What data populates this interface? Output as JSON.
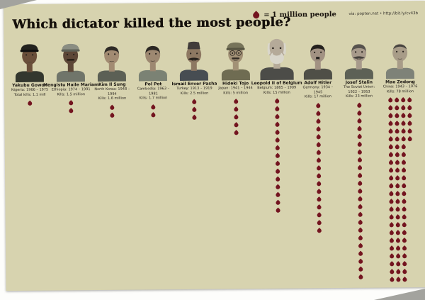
{
  "page": {
    "title": "Which dictator killed the most people?",
    "legend_label": "= 1 million people",
    "credit": "via: popten.net • http://bit.ly/cv43b",
    "colors": {
      "background": "#d7d3af",
      "drop": "#73141f",
      "title": "#15100b"
    }
  },
  "chart_data": {
    "type": "pictograph",
    "title": "Which dictator killed the most people?",
    "unit_label": "= 1 million people",
    "unit": "1 drop = 1 million people",
    "dictators": [
      {
        "name": "Yakubu Gowon",
        "country_years": "Nigeria: 1966 – 1975",
        "kills_label": "Total kills: 1.1 mill",
        "kills_millions": 1.1,
        "drops": 1,
        "portrait": {
          "skin": "#6a4f3a",
          "shirt": "#33372e",
          "hat": "peaked",
          "hat_color": "#23231f",
          "hat_band": "#111110",
          "facial": "none"
        }
      },
      {
        "name": "Mengistu Haile Mariam",
        "country_years": "Ethiopia: 1974 – 1991",
        "kills_label": "Kills: 1.5 million",
        "kills_millions": 1.5,
        "drops": 2,
        "portrait": {
          "skin": "#5d4737",
          "shirt": "#70756a",
          "hat": "peaked",
          "hat_color": "#8a8d82",
          "hat_band": "#5f6258",
          "facial": "mustache",
          "facial_color": "#241c14"
        }
      },
      {
        "name": "Kim Il Sung",
        "country_years": "North Korea: 1948 – 1994",
        "kills_label": "Kills: 1.6 million",
        "kills_millions": 1.6,
        "drops": 2,
        "portrait": {
          "skin": "#a28b72",
          "shirt": "#5c6055",
          "hair": "#2e2a26",
          "facial": "none"
        }
      },
      {
        "name": "Pol Pot",
        "country_years": "Cambodia: 1963 – 1981",
        "kills_label": "Kills: 1.7 million",
        "kills_millions": 1.7,
        "drops": 2,
        "portrait": {
          "skin": "#9d8871",
          "shirt": "#7b8274",
          "hair": "#2b2723",
          "facial": "none"
        }
      },
      {
        "name": "Ismail Enver Pasha",
        "country_years": "Turkey: 1913 – 1919",
        "kills_label": "Kills: 2.5 million",
        "kills_millions": 2.5,
        "drops": 3,
        "portrait": {
          "skin": "#8d7862",
          "shirt": "#474d52",
          "hat": "fez",
          "hat_color": "#413c3a",
          "facial": "big-mustache",
          "facial_color": "#241f1b"
        }
      },
      {
        "name": "Hideki Tojo",
        "country_years": "Japan: 1941 – 1944",
        "kills_label": "Kills: 5 million",
        "kills_millions": 5,
        "drops": 5,
        "portrait": {
          "skin": "#a29176",
          "shirt": "#6f6c52",
          "hat": "peaked",
          "hat_color": "#77745a",
          "hat_band": "#565441",
          "glasses": true,
          "facial": "mustache",
          "facial_color": "#332c24"
        }
      },
      {
        "name": "Leopold II of Belgium",
        "country_years": "Belgium: 1865 – 1909",
        "kills_label": "Kills: 15 million",
        "kills_millions": 15,
        "drops": 15,
        "portrait": {
          "skin": "#b5aa99",
          "shirt": "#4c4c48",
          "hair": "#d9d6cb",
          "hair_style": "sides",
          "facial": "beard",
          "facial_color": "#d9d6cb",
          "scale": 1.18
        }
      },
      {
        "name": "Adolf Hitler",
        "country_years": "Germany: 1934 – 1945",
        "kills_label": "Kills: 17 million",
        "kills_millions": 17,
        "drops": 17,
        "portrait": {
          "skin": "#a29283",
          "shirt": "#4f4f47",
          "hair": "#24211e",
          "facial": "toothbrush",
          "facial_color": "#24211e"
        }
      },
      {
        "name": "Josef Stalin",
        "country_years": "The Soviet Union: 1922 – 1953",
        "kills_label": "Kills: 23 million",
        "kills_millions": 23,
        "drops": 23,
        "portrait": {
          "skin": "#a79a8b",
          "shirt": "#5d6156",
          "hair": "#57534e",
          "facial": "big-mustache",
          "facial_color": "#45413c"
        }
      },
      {
        "name": "Mao Zedong",
        "country_years": "China: 1943 – 1976",
        "kills_label": "Kills: 78 million",
        "kills_millions": 78,
        "drops": 78,
        "portrait": {
          "skin": "#a89c88",
          "shirt": "#7e8278",
          "hair": "#47443f",
          "hair_style": "receding",
          "facial": "none"
        }
      }
    ]
  }
}
